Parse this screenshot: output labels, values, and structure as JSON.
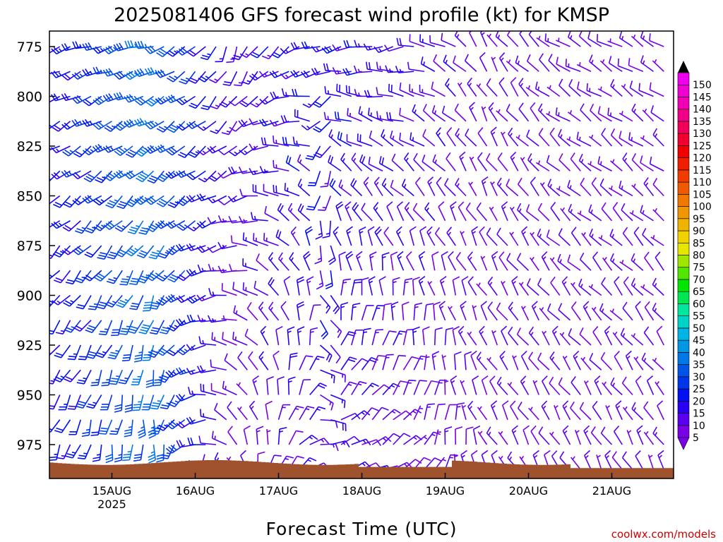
{
  "title": "2025081406 GFS forecast wind profile (kt) for KMSP",
  "xlabel": "Forecast Time (UTC)",
  "credit": "coolwx.com/models",
  "chart_data": {
    "type": "wind_barb_profile",
    "title": "2025081406 GFS forecast wind profile (kt) for KMSP",
    "xlabel": "Forecast Time (UTC)",
    "ylabel": "",
    "y_scale": "pressure (inverted)",
    "ylim": [
      990,
      765
    ],
    "x_ticks": [
      {
        "label": "15AUG",
        "sublabel": "2025",
        "hours_from_start": 18
      },
      {
        "label": "16AUG",
        "sublabel": "",
        "hours_from_start": 42
      },
      {
        "label": "17AUG",
        "sublabel": "",
        "hours_from_start": 66
      },
      {
        "label": "18AUG",
        "sublabel": "",
        "hours_from_start": 90
      },
      {
        "label": "19AUG",
        "sublabel": "",
        "hours_from_start": 114
      },
      {
        "label": "20AUG",
        "sublabel": "",
        "hours_from_start": 138
      },
      {
        "label": "21AUG",
        "sublabel": "",
        "hours_from_start": 162
      }
    ],
    "y_ticks": [
      "775",
      "800",
      "825",
      "850",
      "875",
      "900",
      "925",
      "950",
      "975"
    ],
    "pressure_levels": [
      775,
      787.5,
      800,
      812.5,
      825,
      837.5,
      850,
      862.5,
      875,
      887.5,
      900,
      912.5,
      925,
      937.5,
      950,
      962.5,
      975,
      987.5
    ],
    "colorbar": {
      "labels": [
        "5",
        "10",
        "15",
        "20",
        "25",
        "30",
        "35",
        "40",
        "45",
        "50",
        "55",
        "60",
        "65",
        "70",
        "75",
        "80",
        "85",
        "90",
        "95",
        "100",
        "105",
        "110",
        "115",
        "120",
        "125",
        "130",
        "135",
        "140",
        "145",
        "150"
      ],
      "colors": [
        "#7a00e6",
        "#5a00f0",
        "#2a00f5",
        "#0010f0",
        "#0036ea",
        "#0055e8",
        "#0078e8",
        "#0096e6",
        "#00b4e6",
        "#00d2c8",
        "#00e6a0",
        "#00e650",
        "#00e600",
        "#50e600",
        "#a0e600",
        "#e6e600",
        "#f0d200",
        "#f0b400",
        "#f09600",
        "#f07800",
        "#f05a00",
        "#f03c00",
        "#f01e00",
        "#f00000",
        "#f0002e",
        "#f0005a",
        "#f00087",
        "#f000b4",
        "#f000d2",
        "#f000f0"
      ]
    },
    "ground_color": "#a0522d",
    "days": [
      {
        "date": "15AUG",
        "low_dir": 200,
        "low_spd": 20,
        "high_dir": 250,
        "high_spd": 20
      },
      {
        "date": "16AUG",
        "low_dir": 170,
        "low_spd": 35,
        "high_dir": 255,
        "high_spd": 35
      },
      {
        "date": "17AUG",
        "low_dir": 330,
        "low_spd": 8,
        "high_dir": 200,
        "high_spd": 15
      },
      {
        "date": "18AUG",
        "low_dir": 80,
        "low_spd": 15,
        "high_dir": 255,
        "high_spd": 20
      },
      {
        "date": "19AUG",
        "low_dir": 60,
        "low_spd": 10,
        "high_dir": 260,
        "high_spd": 15
      },
      {
        "date": "20AUG",
        "low_dir": 330,
        "low_spd": 10,
        "high_dir": 330,
        "high_spd": 10
      },
      {
        "date": "21AUG",
        "low_dir": 330,
        "low_spd": 10,
        "high_dir": 300,
        "high_spd": 10
      }
    ]
  }
}
